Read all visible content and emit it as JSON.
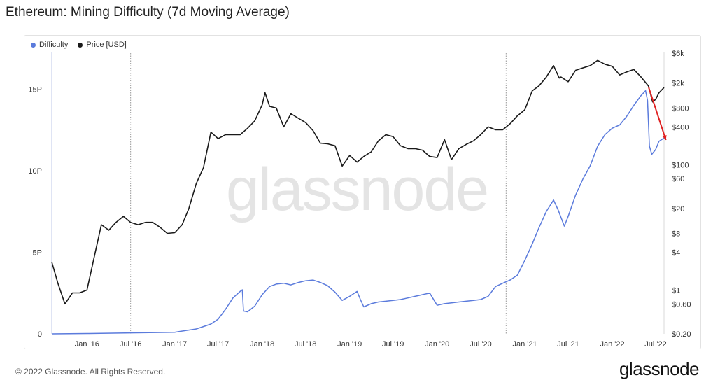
{
  "page": {
    "title": "Ethereum: Mining Difficulty (7d Moving Average)",
    "footer": "© 2022 Glassnode. All Rights Reserved.",
    "brand": "glassnode",
    "watermark": "glassnode"
  },
  "legend": [
    {
      "label": "Difficulty",
      "color": "#5b7bdc"
    },
    {
      "label": "Price [USD]",
      "color": "#1a1a1a"
    }
  ],
  "colors": {
    "difficulty": "#5b7bdc",
    "price": "#1a1a1a",
    "annotation": "#e02020"
  },
  "chart_data": {
    "type": "line",
    "title": "Ethereum: Mining Difficulty (7d Moving Average)",
    "x_ticks": [
      "Jan '16",
      "Jul '16",
      "Jan '17",
      "Jul '17",
      "Jan '18",
      "Jul '18",
      "Jan '19",
      "Jul '19",
      "Jan '20",
      "Jul '20",
      "Jan '21",
      "Jul '21",
      "Jan '22",
      "Jul '22"
    ],
    "x_tick_dates": [
      "2016-01-01",
      "2016-07-01",
      "2017-01-01",
      "2017-07-01",
      "2018-01-01",
      "2018-07-01",
      "2019-01-01",
      "2019-07-01",
      "2020-01-01",
      "2020-07-01",
      "2021-01-01",
      "2021-07-01",
      "2022-01-01",
      "2022-07-01"
    ],
    "x_range": [
      "2015-08-07",
      "2022-08-05"
    ],
    "left_axis": {
      "label": "",
      "ticks": [
        "0",
        "5P",
        "10P",
        "15P"
      ],
      "tick_values": [
        0,
        5,
        10,
        15
      ],
      "unit": "P",
      "range": [
        0,
        17.2
      ]
    },
    "right_axis": {
      "label": "",
      "scale": "log",
      "ticks": [
        "$0.20",
        "$0.60",
        "$1",
        "$4",
        "$8",
        "$20",
        "$60",
        "$100",
        "$400",
        "$800",
        "$2k",
        "$6k"
      ],
      "tick_values": [
        0.2,
        0.6,
        1,
        4,
        8,
        20,
        60,
        100,
        400,
        800,
        2000,
        6000
      ],
      "range": [
        0.2,
        6000
      ]
    },
    "grid": false,
    "vertical_markers": [
      "2016-07-01",
      "2020-10-15"
    ],
    "annotation": {
      "type": "arrow",
      "color": "#e02020",
      "from": "2022-06-01",
      "to": "2022-08-01",
      "note": ""
    },
    "series": [
      {
        "name": "Difficulty",
        "axis": "left",
        "color": "#5b7bdc",
        "points": [
          [
            "2015-08-07",
            0.001
          ],
          [
            "2016-01-01",
            0.02
          ],
          [
            "2016-07-01",
            0.06
          ],
          [
            "2017-01-01",
            0.1
          ],
          [
            "2017-04-01",
            0.3
          ],
          [
            "2017-06-01",
            0.6
          ],
          [
            "2017-07-01",
            0.9
          ],
          [
            "2017-08-01",
            1.5
          ],
          [
            "2017-09-01",
            2.2
          ],
          [
            "2017-10-01",
            2.6
          ],
          [
            "2017-10-10",
            2.7
          ],
          [
            "2017-10-15",
            1.4
          ],
          [
            "2017-11-01",
            1.35
          ],
          [
            "2017-12-01",
            1.7
          ],
          [
            "2018-01-01",
            2.4
          ],
          [
            "2018-02-01",
            2.9
          ],
          [
            "2018-03-01",
            3.05
          ],
          [
            "2018-04-01",
            3.1
          ],
          [
            "2018-05-01",
            3.0
          ],
          [
            "2018-06-01",
            3.15
          ],
          [
            "2018-07-01",
            3.25
          ],
          [
            "2018-08-01",
            3.3
          ],
          [
            "2018-09-01",
            3.15
          ],
          [
            "2018-10-01",
            2.95
          ],
          [
            "2018-11-01",
            2.55
          ],
          [
            "2018-12-01",
            2.05
          ],
          [
            "2019-01-01",
            2.3
          ],
          [
            "2019-02-01",
            2.6
          ],
          [
            "2019-02-15",
            2.1
          ],
          [
            "2019-03-01",
            1.65
          ],
          [
            "2019-04-01",
            1.85
          ],
          [
            "2019-05-01",
            1.95
          ],
          [
            "2019-06-01",
            2.0
          ],
          [
            "2019-07-01",
            2.05
          ],
          [
            "2019-08-01",
            2.1
          ],
          [
            "2019-09-01",
            2.2
          ],
          [
            "2019-10-01",
            2.3
          ],
          [
            "2019-11-01",
            2.4
          ],
          [
            "2019-12-01",
            2.5
          ],
          [
            "2020-01-01",
            1.75
          ],
          [
            "2020-02-01",
            1.85
          ],
          [
            "2020-03-01",
            1.9
          ],
          [
            "2020-04-01",
            1.95
          ],
          [
            "2020-05-01",
            2.0
          ],
          [
            "2020-06-01",
            2.05
          ],
          [
            "2020-07-01",
            2.1
          ],
          [
            "2020-08-01",
            2.3
          ],
          [
            "2020-09-01",
            2.9
          ],
          [
            "2020-10-01",
            3.1
          ],
          [
            "2020-11-01",
            3.3
          ],
          [
            "2020-12-01",
            3.6
          ],
          [
            "2021-01-01",
            4.5
          ],
          [
            "2021-02-01",
            5.5
          ],
          [
            "2021-03-01",
            6.5
          ],
          [
            "2021-04-01",
            7.5
          ],
          [
            "2021-05-01",
            8.2
          ],
          [
            "2021-05-20",
            7.6
          ],
          [
            "2021-06-15",
            6.6
          ],
          [
            "2021-07-01",
            7.2
          ],
          [
            "2021-08-01",
            8.5
          ],
          [
            "2021-09-01",
            9.5
          ],
          [
            "2021-10-01",
            10.3
          ],
          [
            "2021-11-01",
            11.5
          ],
          [
            "2021-12-01",
            12.2
          ],
          [
            "2022-01-01",
            12.6
          ],
          [
            "2022-02-01",
            12.8
          ],
          [
            "2022-03-01",
            13.3
          ],
          [
            "2022-04-01",
            14.0
          ],
          [
            "2022-05-01",
            14.6
          ],
          [
            "2022-05-20",
            14.9
          ],
          [
            "2022-05-28",
            14.3
          ],
          [
            "2022-06-05",
            11.5
          ],
          [
            "2022-06-15",
            11.0
          ],
          [
            "2022-07-01",
            11.3
          ],
          [
            "2022-07-15",
            11.8
          ],
          [
            "2022-08-05",
            12.0
          ]
        ]
      },
      {
        "name": "Price [USD]",
        "axis": "right",
        "color": "#1a1a1a",
        "points": [
          [
            "2015-08-07",
            2.8
          ],
          [
            "2015-09-01",
            1.3
          ],
          [
            "2015-10-01",
            0.6
          ],
          [
            "2015-11-01",
            0.9
          ],
          [
            "2015-12-01",
            0.9
          ],
          [
            "2016-01-01",
            1.0
          ],
          [
            "2016-02-01",
            3.5
          ],
          [
            "2016-03-01",
            11
          ],
          [
            "2016-04-01",
            9.0
          ],
          [
            "2016-05-01",
            12
          ],
          [
            "2016-06-01",
            15
          ],
          [
            "2016-07-01",
            12
          ],
          [
            "2016-08-01",
            11
          ],
          [
            "2016-09-01",
            12
          ],
          [
            "2016-10-01",
            12
          ],
          [
            "2016-11-01",
            10
          ],
          [
            "2016-12-01",
            8.0
          ],
          [
            "2017-01-01",
            8.2
          ],
          [
            "2017-02-01",
            11
          ],
          [
            "2017-03-01",
            20
          ],
          [
            "2017-04-01",
            50
          ],
          [
            "2017-05-01",
            90
          ],
          [
            "2017-06-01",
            330
          ],
          [
            "2017-07-01",
            260
          ],
          [
            "2017-08-01",
            300
          ],
          [
            "2017-09-01",
            300
          ],
          [
            "2017-10-01",
            300
          ],
          [
            "2017-11-01",
            380
          ],
          [
            "2017-12-01",
            500
          ],
          [
            "2018-01-01",
            900
          ],
          [
            "2018-01-13",
            1400
          ],
          [
            "2018-02-01",
            850
          ],
          [
            "2018-03-01",
            800
          ],
          [
            "2018-04-01",
            400
          ],
          [
            "2018-05-01",
            650
          ],
          [
            "2018-06-01",
            550
          ],
          [
            "2018-07-01",
            470
          ],
          [
            "2018-08-01",
            350
          ],
          [
            "2018-09-01",
            220
          ],
          [
            "2018-10-01",
            215
          ],
          [
            "2018-11-01",
            200
          ],
          [
            "2018-12-01",
            95
          ],
          [
            "2019-01-01",
            140
          ],
          [
            "2019-02-01",
            110
          ],
          [
            "2019-03-01",
            135
          ],
          [
            "2019-04-01",
            160
          ],
          [
            "2019-05-01",
            240
          ],
          [
            "2019-06-01",
            300
          ],
          [
            "2019-07-01",
            280
          ],
          [
            "2019-08-01",
            200
          ],
          [
            "2019-09-01",
            180
          ],
          [
            "2019-10-01",
            180
          ],
          [
            "2019-11-01",
            170
          ],
          [
            "2019-12-01",
            135
          ],
          [
            "2020-01-01",
            130
          ],
          [
            "2020-02-01",
            250
          ],
          [
            "2020-03-01",
            120
          ],
          [
            "2020-04-01",
            180
          ],
          [
            "2020-05-01",
            210
          ],
          [
            "2020-06-01",
            240
          ],
          [
            "2020-07-01",
            300
          ],
          [
            "2020-08-01",
            400
          ],
          [
            "2020-09-01",
            360
          ],
          [
            "2020-10-01",
            360
          ],
          [
            "2020-11-01",
            450
          ],
          [
            "2020-12-01",
            600
          ],
          [
            "2021-01-01",
            750
          ],
          [
            "2021-02-01",
            1500
          ],
          [
            "2021-03-01",
            1800
          ],
          [
            "2021-04-01",
            2500
          ],
          [
            "2021-05-01",
            3800
          ],
          [
            "2021-05-25",
            2400
          ],
          [
            "2021-06-01",
            2500
          ],
          [
            "2021-07-01",
            2100
          ],
          [
            "2021-08-01",
            3200
          ],
          [
            "2021-09-01",
            3500
          ],
          [
            "2021-10-01",
            3800
          ],
          [
            "2021-11-01",
            4600
          ],
          [
            "2021-12-01",
            4000
          ],
          [
            "2022-01-01",
            3700
          ],
          [
            "2022-02-01",
            2700
          ],
          [
            "2022-03-01",
            3000
          ],
          [
            "2022-04-01",
            3300
          ],
          [
            "2022-05-01",
            2500
          ],
          [
            "2022-06-01",
            1800
          ],
          [
            "2022-06-18",
            1000
          ],
          [
            "2022-07-01",
            1100
          ],
          [
            "2022-07-15",
            1400
          ],
          [
            "2022-08-05",
            1700
          ]
        ]
      }
    ]
  }
}
